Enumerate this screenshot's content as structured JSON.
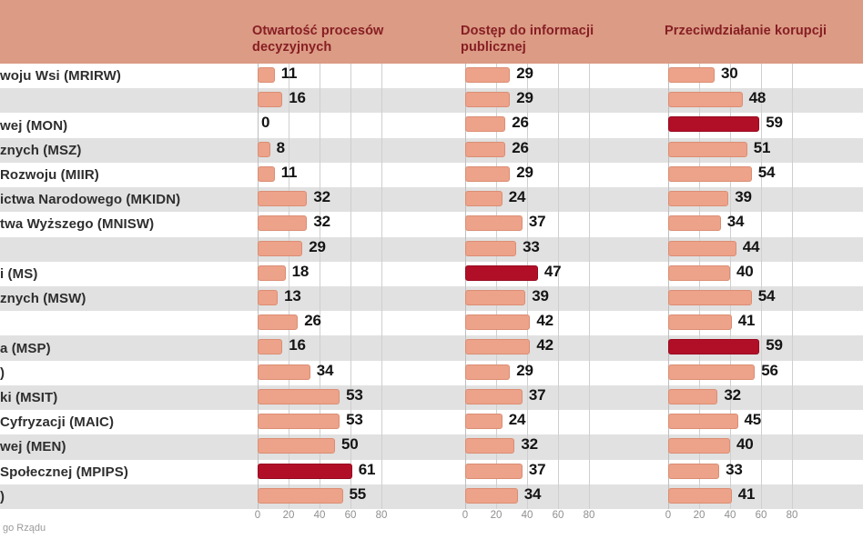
{
  "chart_data": {
    "type": "bar",
    "orientation": "horizontal",
    "xlim": [
      0,
      80
    ],
    "axis_ticks": [
      "0",
      "20",
      "40",
      "60",
      "80"
    ],
    "grid": true,
    "categories": [
      "woju Wsi (MRIRW)",
      "",
      "wej (MON)",
      "znych (MSZ)",
      "Rozwoju (MIIR)",
      "ictwa Narodowego (MKIDN)",
      "twa Wyższego (MNISW)",
      "",
      "i (MS)",
      "znych (MSW)",
      "",
      "a (MSP)",
      ")",
      "ki (MSIT)",
      "Cyfryzacji (MAIC)",
      "wej (MEN)",
      "Społecznej (MPIPS)",
      ")"
    ],
    "series": [
      {
        "name": "Otwartość procesów decyzyjnych",
        "values": [
          11,
          16,
          0,
          8,
          11,
          32,
          32,
          29,
          18,
          13,
          26,
          16,
          34,
          53,
          53,
          50,
          61,
          55
        ],
        "highlights": [
          16
        ]
      },
      {
        "name": "Dostęp do informacji publicznej",
        "values": [
          29,
          29,
          26,
          26,
          29,
          24,
          37,
          33,
          47,
          39,
          42,
          42,
          29,
          37,
          24,
          32,
          37,
          34
        ],
        "highlights": [
          8
        ]
      },
      {
        "name": "Przeciwdziałanie korupcji",
        "values": [
          30,
          48,
          59,
          51,
          54,
          39,
          34,
          44,
          40,
          54,
          41,
          59,
          56,
          32,
          45,
          40,
          33,
          41
        ],
        "highlights": [
          2,
          11
        ]
      }
    ],
    "colors": {
      "header_bg": "#db9b84",
      "header_text": "#871e24",
      "bar_fill": "#eda28a",
      "bar_border": "#db8e73",
      "highlight_fill": "#b10f28",
      "stripe": "#e1e1e1",
      "value_text": "#141414"
    }
  },
  "footer": {
    "source": "go Rządu"
  }
}
